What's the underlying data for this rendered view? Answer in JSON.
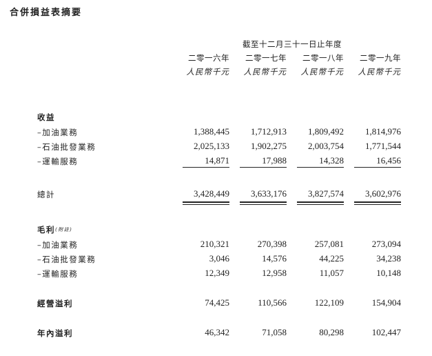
{
  "title": "合併損益表摘要",
  "header": "截至十二月三十一日止年度",
  "years": [
    "二零一六年",
    "二零一七年",
    "二零一八年",
    "二零一九年"
  ],
  "unit": "人民幣千元",
  "revenue": {
    "label": "收益",
    "rows": [
      {
        "label": "–加油業務",
        "values": [
          "1,388,445",
          "1,712,913",
          "1,809,492",
          "1,814,976"
        ]
      },
      {
        "label": "–石油批發業務",
        "values": [
          "2,025,133",
          "1,902,275",
          "2,003,754",
          "1,771,544"
        ]
      },
      {
        "label": "–運輸服務",
        "values": [
          "14,871",
          "17,988",
          "14,328",
          "16,456"
        ]
      }
    ]
  },
  "total": {
    "label": "總計",
    "values": [
      "3,428,449",
      "3,633,176",
      "3,827,574",
      "3,602,976"
    ]
  },
  "gross": {
    "label": "毛利",
    "note": "(附註)",
    "rows": [
      {
        "label": "–加油業務",
        "values": [
          "210,321",
          "270,398",
          "257,081",
          "273,094"
        ]
      },
      {
        "label": "–石油批發業務",
        "values": [
          "3,046",
          "14,576",
          "44,225",
          "34,238"
        ]
      },
      {
        "label": "–運輸服務",
        "values": [
          "12,349",
          "12,958",
          "11,057",
          "10,148"
        ]
      }
    ]
  },
  "operating": {
    "label": "經營溢利",
    "values": [
      "74,425",
      "110,566",
      "122,109",
      "154,904"
    ]
  },
  "net": {
    "label": "年內溢利",
    "values": [
      "46,342",
      "71,058",
      "80,298",
      "102,447"
    ]
  }
}
